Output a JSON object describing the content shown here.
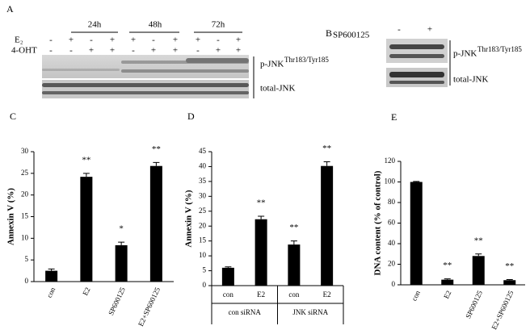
{
  "blots": {
    "a": {
      "letter": "A",
      "times": [
        "24h",
        "48h",
        "72h"
      ],
      "row_labels": [
        "E₂",
        "4-OHT"
      ],
      "signs": [
        [
          "-",
          "+",
          "-",
          "+",
          "+",
          "-",
          "+",
          "+",
          "-",
          "+"
        ],
        [
          "-",
          "-",
          "+",
          "+",
          "-",
          "+",
          "+",
          "-",
          "+",
          "+"
        ]
      ],
      "bands": [
        "p-JNK",
        "Thr183/Tyr185",
        "total-JNK"
      ]
    },
    "b": {
      "letter": "B",
      "treatment": "SP600125",
      "signs": [
        "-",
        "+"
      ],
      "bands": [
        "p-JNK",
        "Thr183/Tyr185",
        "total-JNK"
      ]
    }
  },
  "chart_data": [
    {
      "type": "bar",
      "letter": "C",
      "ylabel": "Annexin V (%)",
      "categories": [
        "con",
        "E2",
        "SP600125",
        "E2+SP600125"
      ],
      "series": [
        {
          "values": [
            2.5,
            24.2,
            8.4,
            26.7
          ],
          "errors": [
            0.4,
            0.8,
            0.7,
            0.8
          ],
          "color": "#000000"
        }
      ],
      "annotations": [
        null,
        "**",
        "*",
        "**"
      ],
      "ylim": [
        0,
        30
      ],
      "yticks": [
        0,
        5,
        10,
        15,
        20,
        25,
        30
      ]
    },
    {
      "type": "bar",
      "letter": "D",
      "ylabel": "Annexin V (%)",
      "categories": [
        "con",
        "E2",
        "con",
        "E2"
      ],
      "groups": [
        "con siRNA",
        "JNK siRNA"
      ],
      "series": [
        {
          "values": [
            6,
            22.3,
            13.8,
            40.2
          ],
          "errors": [
            0.3,
            1.0,
            1.2,
            1.4
          ],
          "color": "#000000"
        }
      ],
      "annotations": [
        null,
        "**",
        "**",
        "**"
      ],
      "ylim": [
        0,
        45
      ],
      "yticks": [
        0,
        5,
        10,
        15,
        20,
        25,
        30,
        35,
        40,
        45
      ]
    },
    {
      "type": "bar",
      "letter": "E",
      "ylabel": "DNA content (% of control)",
      "categories": [
        "con",
        "E2",
        "SP600125",
        "E2+SP600125"
      ],
      "series": [
        {
          "values": [
            100,
            5,
            28,
            4.5
          ],
          "errors": [
            0.5,
            0.8,
            2,
            0.6
          ],
          "color": "#000000"
        }
      ],
      "annotations": [
        null,
        "**",
        "**",
        "**"
      ],
      "ylim": [
        0,
        120
      ],
      "yticks": [
        0,
        20,
        40,
        60,
        80,
        100,
        120
      ]
    }
  ]
}
